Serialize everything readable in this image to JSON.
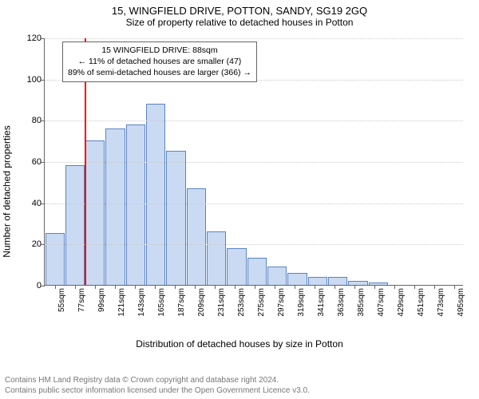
{
  "title": "15, WINGFIELD DRIVE, POTTON, SANDY, SG19 2GQ",
  "subtitle": "Size of property relative to detached houses in Potton",
  "ylabel": "Number of detached properties",
  "xlabel": "Distribution of detached houses by size in Potton",
  "chart": {
    "type": "bar",
    "ylim": [
      0,
      120
    ],
    "yticks": [
      0,
      20,
      40,
      60,
      80,
      100,
      120
    ],
    "bar_fill": "#c9daf2",
    "bar_stroke": "#5b83c4",
    "background": "#ffffff",
    "grid_color": "#cccccc",
    "categories": [
      "55sqm",
      "77sqm",
      "99sqm",
      "121sqm",
      "143sqm",
      "165sqm",
      "187sqm",
      "209sqm",
      "231sqm",
      "253sqm",
      "275sqm",
      "297sqm",
      "319sqm",
      "341sqm",
      "363sqm",
      "385sqm",
      "407sqm",
      "429sqm",
      "451sqm",
      "473sqm",
      "495sqm"
    ],
    "values": [
      25,
      58,
      70,
      76,
      78,
      88,
      65,
      47,
      26,
      18,
      13,
      9,
      6,
      4,
      4,
      2,
      1,
      0,
      0,
      0,
      0
    ],
    "marker": {
      "position_sqm": 88,
      "color": "#ff0000",
      "width": 2
    },
    "annotation": {
      "line1": "15 WINGFIELD DRIVE: 88sqm",
      "line2": "← 11% of detached houses are smaller (47)",
      "line3": "89% of semi-detached houses are larger (366) →",
      "box_border": "#666666",
      "box_bg": "#ffffff",
      "font_size": 10.5
    }
  },
  "credits": {
    "line1": "Contains HM Land Registry data © Crown copyright and database right 2024.",
    "line2": "Contains public sector information licensed under the Open Government Licence v3.0."
  }
}
